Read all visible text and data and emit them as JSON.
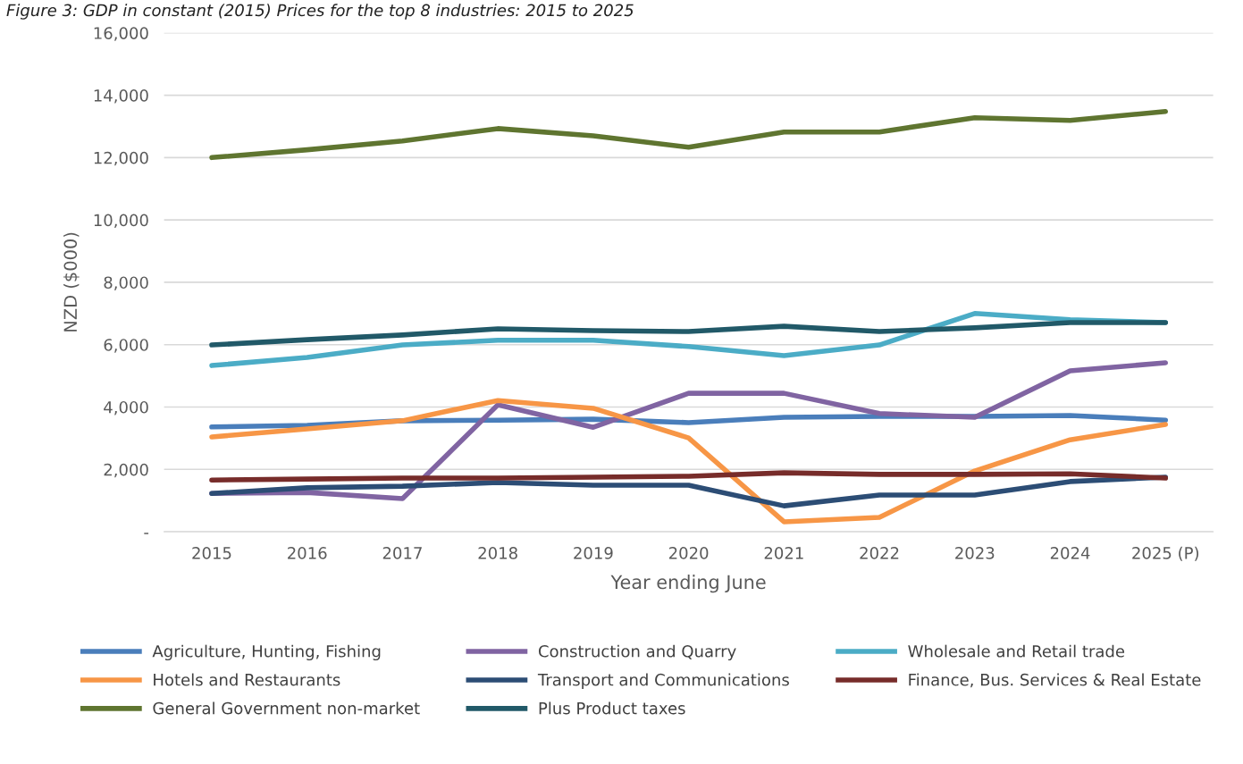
{
  "chart_data": {
    "type": "line",
    "title": "Figure 3: GDP in constant (2015) Prices for the top 8 industries: 2015 to 2025",
    "xlabel": "Year ending June",
    "ylabel": "NZD ($000)",
    "categories": [
      "2015",
      "2016",
      "2017",
      "2018",
      "2019",
      "2020",
      "2021",
      "2022",
      "2023",
      "2024",
      "2025 (P)"
    ],
    "ylim": [
      0,
      16000
    ],
    "yticks": [
      {
        "value": 0,
        "label": "-"
      },
      {
        "value": 2000,
        "label": "2,000"
      },
      {
        "value": 4000,
        "label": "4,000"
      },
      {
        "value": 6000,
        "label": "6,000"
      },
      {
        "value": 8000,
        "label": "8,000"
      },
      {
        "value": 10000,
        "label": "10,000"
      },
      {
        "value": 12000,
        "label": "12,000"
      },
      {
        "value": 14000,
        "label": "14,000"
      },
      {
        "value": 16000,
        "label": "16,000"
      }
    ],
    "grid": "y",
    "legend": "bottom",
    "marker": "none",
    "line_style": "solid",
    "series": [
      {
        "name": "Agriculture, Hunting, Fishing",
        "color": "#4a7ebb",
        "values": [
          3360,
          3410,
          3560,
          3580,
          3610,
          3500,
          3670,
          3700,
          3700,
          3730,
          3580
        ]
      },
      {
        "name": "Construction and Quarry",
        "color": "#8064a2",
        "values": [
          1230,
          1260,
          1060,
          4070,
          3350,
          4440,
          4440,
          3790,
          3670,
          5160,
          5420
        ]
      },
      {
        "name": "Wholesale and Retail trade",
        "color": "#4bacc6",
        "values": [
          5330,
          5590,
          5990,
          6140,
          6140,
          5940,
          5650,
          5990,
          7000,
          6800,
          6710
        ]
      },
      {
        "name": "Hotels and Restaurants",
        "color": "#f79646",
        "values": [
          3040,
          3300,
          3560,
          4210,
          3960,
          3010,
          320,
          460,
          1950,
          2950,
          3440
        ]
      },
      {
        "name": "Transport and Communications",
        "color": "#2c4d75",
        "values": [
          1230,
          1410,
          1460,
          1580,
          1490,
          1490,
          830,
          1180,
          1180,
          1610,
          1750
        ]
      },
      {
        "name": "Finance, Bus. Services & Real Estate",
        "color": "#772c2a",
        "values": [
          1660,
          1690,
          1720,
          1720,
          1750,
          1780,
          1890,
          1840,
          1840,
          1860,
          1720
        ]
      },
      {
        "name": "General Government non-market",
        "color": "#5f7530",
        "values": [
          12000,
          12250,
          12530,
          12930,
          12700,
          12330,
          12820,
          12820,
          13280,
          13190,
          13480
        ]
      },
      {
        "name": "Plus Product taxes",
        "color": "#215968",
        "values": [
          5990,
          6160,
          6310,
          6510,
          6450,
          6420,
          6590,
          6420,
          6540,
          6710,
          6710
        ]
      }
    ]
  }
}
